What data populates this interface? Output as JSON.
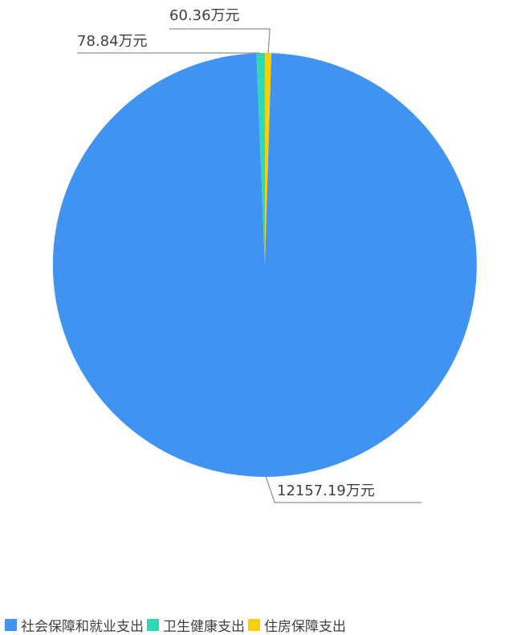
{
  "chart_data": {
    "type": "pie",
    "title": "",
    "legend_position": "bottom",
    "slices": [
      {
        "name": "社会保障和就业支出",
        "value": 12157.19,
        "label": "12157.19万元",
        "color": "#4193f1"
      },
      {
        "name": "卫生健康支出",
        "value": 78.84,
        "label": "78.84万元",
        "color": "#2ed9b5"
      },
      {
        "name": "住房保障支出",
        "value": 60.36,
        "label": "60.36万元",
        "color": "#f7cf0a"
      }
    ]
  }
}
